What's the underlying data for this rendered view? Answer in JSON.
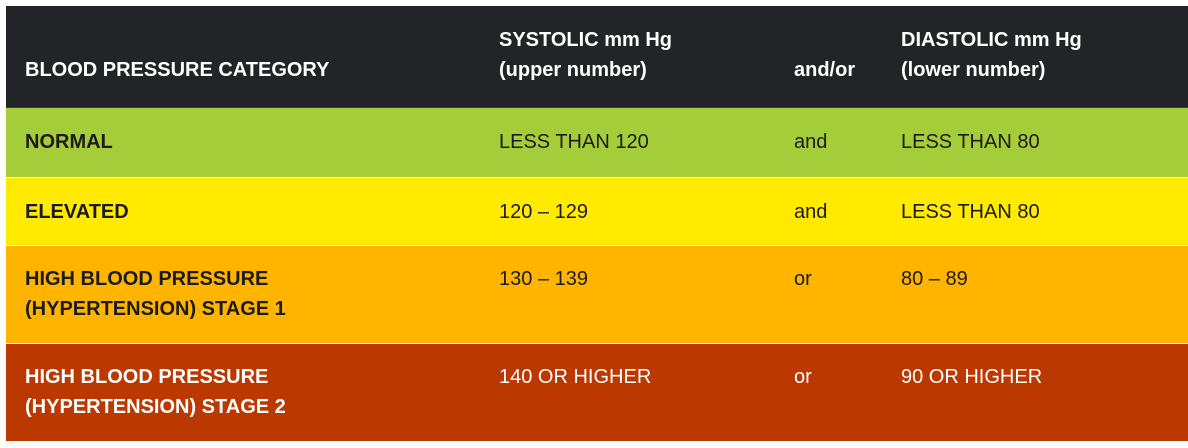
{
  "colors": {
    "header": "#232428",
    "normal": "#a5cd39",
    "elevated": "#ffea00",
    "stage1": "#ffb500",
    "stage2": "#bb3800"
  },
  "header": {
    "category": "BLOOD PRESSURE CATEGORY",
    "systolic_line1": "SYSTOLIC mm Hg",
    "systolic_line2": "(upper number)",
    "andor": "and/or",
    "diastolic_line1": "DIASTOLIC mm Hg",
    "diastolic_line2": "(lower number)"
  },
  "rows": [
    {
      "category_line1": "NORMAL",
      "systolic": "LESS THAN 120",
      "connector": "and",
      "diastolic": "LESS THAN 80"
    },
    {
      "category_line1": "ELEVATED",
      "systolic": "120 – 129",
      "connector": "and",
      "diastolic": "LESS THAN 80"
    },
    {
      "category_line1": "HIGH BLOOD PRESSURE",
      "category_line2": "(HYPERTENSION) STAGE 1",
      "systolic": "130 – 139",
      "connector": "or",
      "diastolic": "80 – 89"
    },
    {
      "category_line1": "HIGH BLOOD PRESSURE",
      "category_line2": "(HYPERTENSION) STAGE 2",
      "systolic": "140 OR HIGHER",
      "connector": "or",
      "diastolic": "90 OR HIGHER"
    }
  ]
}
